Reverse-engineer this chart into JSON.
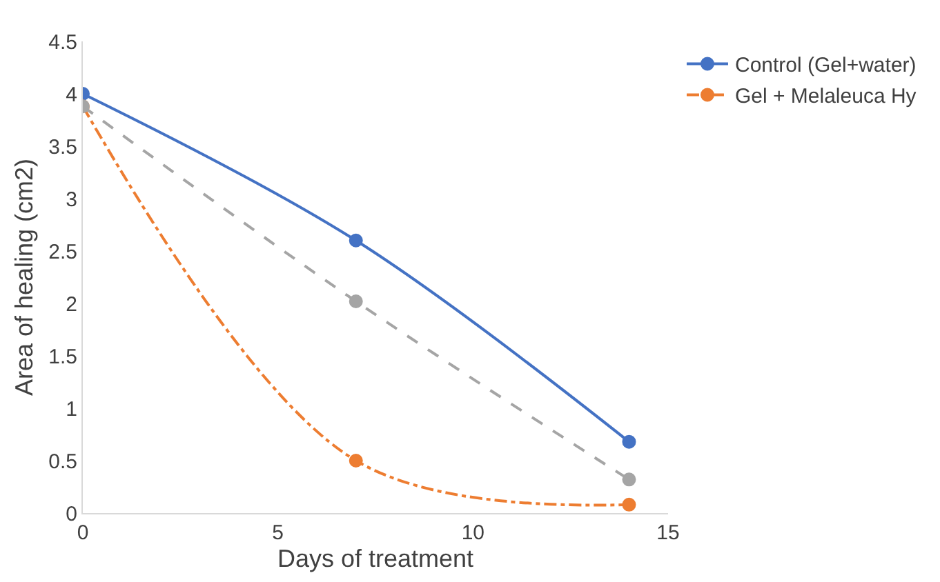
{
  "chart_data": {
    "type": "line",
    "xlabel": "Days of treatment",
    "ylabel": "Area of healing (cm2)",
    "x": [
      0,
      7,
      14
    ],
    "series": [
      {
        "name": "Control (Gel+water)",
        "color": "#4472c4",
        "line_style": "solid",
        "values": [
          4.0,
          2.6,
          0.68
        ]
      },
      {
        "name": "Gel + Melaleuca Hy",
        "color": "#ed7d31",
        "line_style": "dashdot",
        "values": [
          3.88,
          0.5,
          0.08
        ]
      },
      {
        "color": "#a5a5a5",
        "line_style": "dashed",
        "values": [
          3.88,
          2.02,
          0.32
        ]
      }
    ],
    "xlim": [
      0,
      15
    ],
    "xticks": [
      0,
      5,
      10,
      15
    ],
    "ylim": [
      0,
      4.5
    ],
    "yticks": [
      0,
      0.5,
      1,
      1.5,
      2,
      2.5,
      3,
      3.5,
      4,
      4.5
    ],
    "legend": "top right",
    "marker": "circle"
  }
}
